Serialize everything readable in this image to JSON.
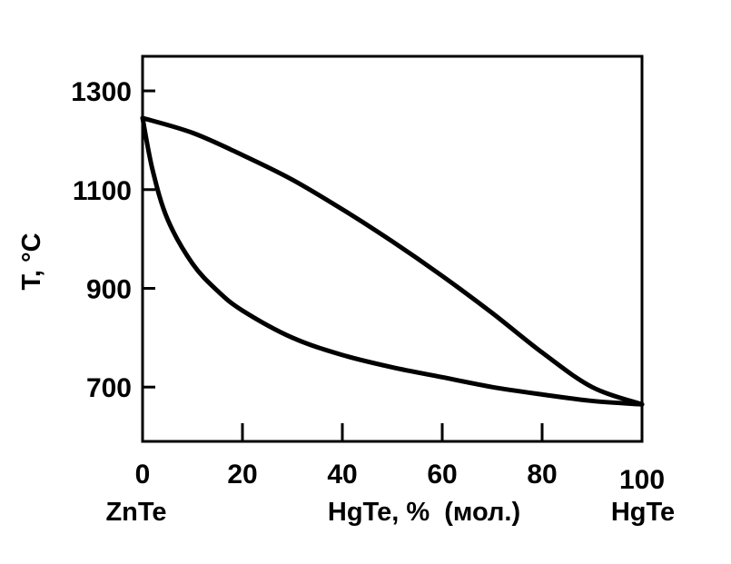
{
  "chart_data": {
    "type": "line",
    "xlabel": "HgTe, %  (мол.)",
    "ylabel": "T, °C",
    "xlim": [
      0,
      100
    ],
    "ylim": [
      590,
      1370
    ],
    "x_ticks": [
      0,
      20,
      40,
      60,
      80,
      100
    ],
    "x_tick_labels": [
      "0",
      "20",
      "40",
      "60",
      "80",
      "100"
    ],
    "y_ticks": [
      700,
      900,
      1100,
      1300
    ],
    "y_tick_labels": [
      "700",
      "900",
      "1100",
      "1300"
    ],
    "x_end_labels": {
      "left": "ZnTe",
      "right": "HgTe"
    },
    "grid": false,
    "legend": "none",
    "series": [
      {
        "x": [
          0,
          10,
          20,
          30,
          40,
          50,
          60,
          70,
          80,
          90,
          100
        ],
        "y": [
          1245,
          1215,
          1170,
          1120,
          1060,
          995,
          925,
          850,
          770,
          700,
          665
        ]
      },
      {
        "x": [
          0,
          2,
          5,
          10,
          15,
          20,
          30,
          40,
          50,
          60,
          70,
          80,
          90,
          100
        ],
        "y": [
          1245,
          1140,
          1040,
          950,
          895,
          855,
          800,
          765,
          740,
          720,
          700,
          685,
          672,
          665
        ]
      }
    ],
    "line_color": "#000000"
  }
}
